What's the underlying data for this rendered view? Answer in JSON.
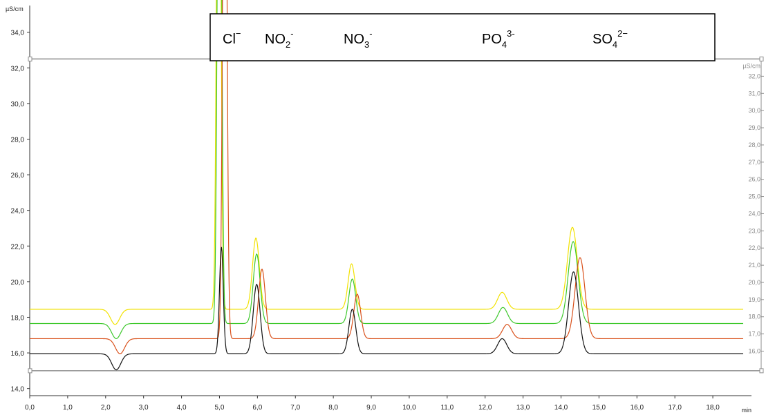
{
  "chart_data": {
    "type": "line",
    "x": [
      0,
      18.8
    ],
    "xlim": [
      0,
      18.8
    ],
    "ylim": [
      13.6,
      35.5
    ],
    "xlabel": "min",
    "ylabel": "µS/cm",
    "y2label": "µS/cm",
    "x_ticks": [
      "0,0",
      "1,0",
      "2,0",
      "3,0",
      "4,0",
      "5,0",
      "6,0",
      "7,0",
      "8,0",
      "9,0",
      "10,0",
      "11,0",
      "12,0",
      "13,0",
      "14,0",
      "15,0",
      "16,0",
      "17,0",
      "18,0"
    ],
    "x_tick_values": [
      0,
      1,
      2,
      3,
      4,
      5,
      6,
      7,
      8,
      9,
      10,
      11,
      12,
      13,
      14,
      15,
      16,
      17,
      18
    ],
    "y_ticks": [
      "14,0",
      "16,0",
      "18,0",
      "20,0",
      "22,0",
      "24,0",
      "26,0",
      "28,0",
      "30,0",
      "32,0",
      "34,0"
    ],
    "y_tick_values": [
      14,
      16,
      18,
      20,
      22,
      24,
      26,
      28,
      30,
      32,
      34
    ],
    "y2_ticks": [
      "16,0",
      "17,0",
      "18,0",
      "19,0",
      "20,0",
      "21,0",
      "22,0",
      "23,0",
      "24,0",
      "25,0",
      "26,0",
      "27,0",
      "28,0",
      "29,0",
      "30,0",
      "31,0",
      "32,0"
    ],
    "y2_tick_values": [
      16,
      17,
      18,
      19,
      20,
      21,
      22,
      23,
      24,
      25,
      26,
      27,
      28,
      29,
      30,
      31,
      32
    ],
    "plot_window_y": [
      15.0,
      32.5
    ],
    "ions": [
      {
        "base": "Cl",
        "sup": "−",
        "sub": "",
        "x": 4.9
      },
      {
        "base": "NO",
        "sub": "2",
        "sup": "-",
        "x": 5.95
      },
      {
        "base": "NO",
        "sub": "3",
        "sup": "-",
        "x": 8.5
      },
      {
        "base": "PO",
        "sub": "4",
        "sup": "3-",
        "x": 12.4
      },
      {
        "base": "SO",
        "sub": "4",
        "sup": "2−",
        "x": 14.3
      }
    ],
    "series": [
      {
        "color": "#f2e200",
        "baseline": 18.45,
        "dip": {
          "x": 2.25,
          "depth": 0.85,
          "width": 0.12
        },
        "peaks": [
          {
            "x": 4.98,
            "height": 40.0,
            "width": 0.05
          },
          {
            "x": 5.96,
            "height": 4.0,
            "width": 0.09
          },
          {
            "x": 8.48,
            "height": 2.55,
            "width": 0.09
          },
          {
            "x": 12.45,
            "height": 0.95,
            "width": 0.12
          },
          {
            "x": 14.3,
            "height": 4.6,
            "width": 0.13
          }
        ]
      },
      {
        "color": "#3cc82a",
        "baseline": 17.65,
        "dip": {
          "x": 2.28,
          "depth": 0.85,
          "width": 0.12
        },
        "peaks": [
          {
            "x": 5.0,
            "height": 40.0,
            "width": 0.05
          },
          {
            "x": 5.98,
            "height": 3.9,
            "width": 0.09
          },
          {
            "x": 8.5,
            "height": 2.5,
            "width": 0.09
          },
          {
            "x": 12.47,
            "height": 0.9,
            "width": 0.12
          },
          {
            "x": 14.32,
            "height": 4.6,
            "width": 0.13
          }
        ]
      },
      {
        "color": "#d9501a",
        "baseline": 16.8,
        "dip": {
          "x": 2.38,
          "depth": 0.85,
          "width": 0.12
        },
        "peaks": [
          {
            "x": 5.14,
            "height": 40.0,
            "width": 0.05
          },
          {
            "x": 6.12,
            "height": 3.9,
            "width": 0.09
          },
          {
            "x": 8.63,
            "height": 2.5,
            "width": 0.09
          },
          {
            "x": 12.58,
            "height": 0.8,
            "width": 0.12
          },
          {
            "x": 14.5,
            "height": 4.55,
            "width": 0.13
          }
        ]
      },
      {
        "color": "#111111",
        "baseline": 15.95,
        "dip": {
          "x": 2.28,
          "depth": 0.9,
          "width": 0.12
        },
        "peaks": [
          {
            "x": 5.05,
            "height": 6.0,
            "width": 0.05
          },
          {
            "x": 5.98,
            "height": 3.9,
            "width": 0.09
          },
          {
            "x": 8.5,
            "height": 2.5,
            "width": 0.09
          },
          {
            "x": 12.45,
            "height": 0.85,
            "width": 0.12
          },
          {
            "x": 14.33,
            "height": 4.6,
            "width": 0.13
          }
        ]
      }
    ]
  }
}
